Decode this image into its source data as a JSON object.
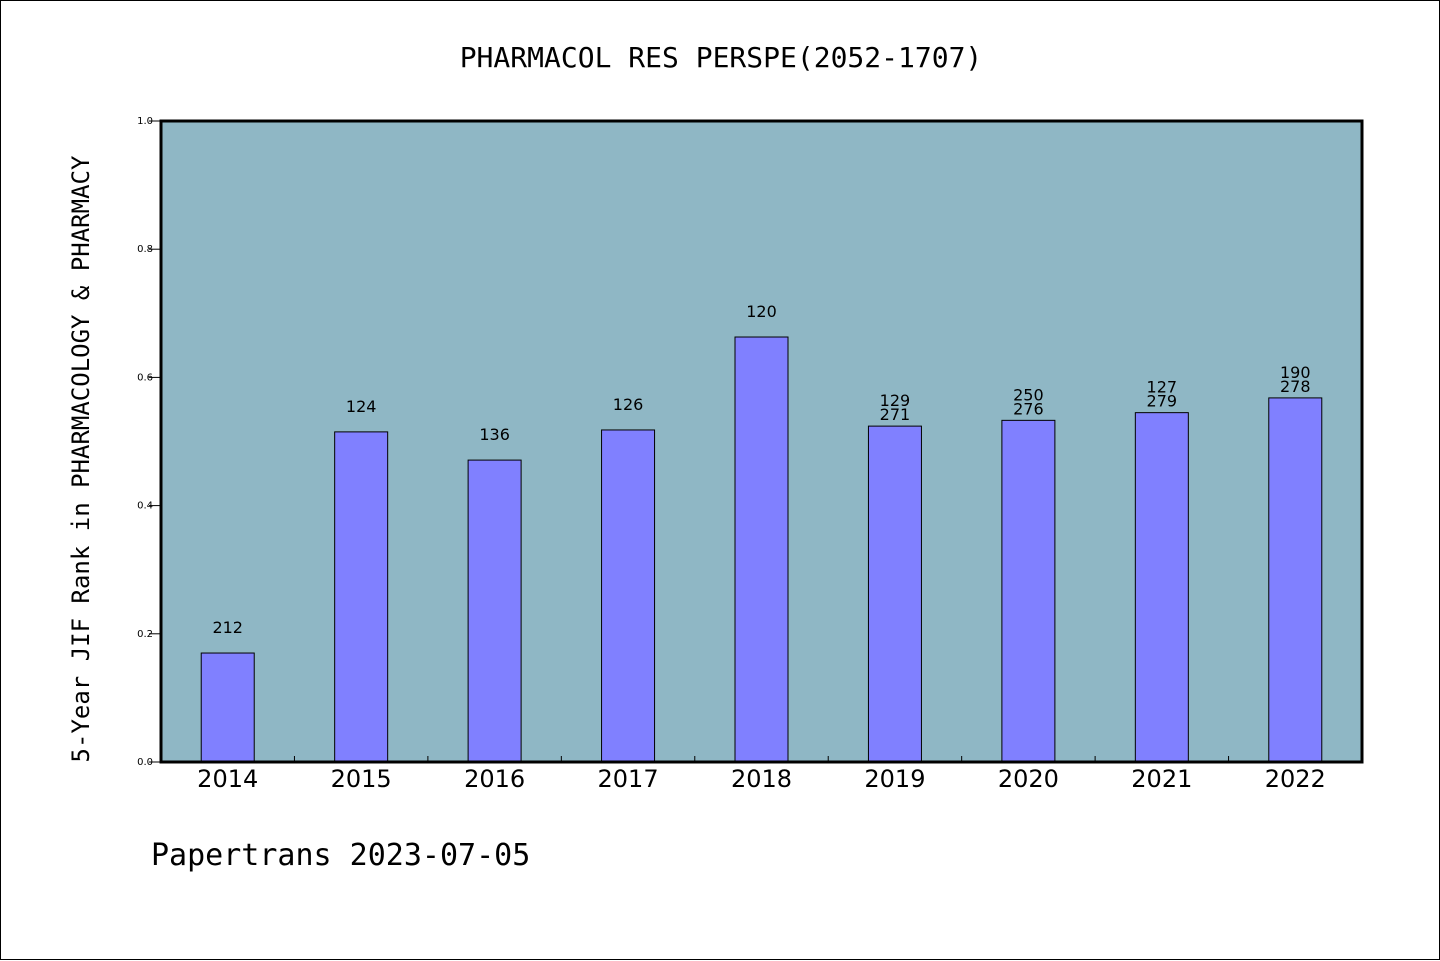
{
  "chart_data": {
    "type": "bar",
    "title": "PHARMACOL RES PERSPE(2052-1707)",
    "ylabel": "5-Year JIF Rank in PHARMACOLOGY & PHARMACY",
    "xlabel": "",
    "ylim": [
      0,
      1.0
    ],
    "yticks": [
      "0.0",
      "0.2",
      "0.4",
      "0.6",
      "0.8",
      "1.0"
    ],
    "categories": [
      "2014",
      "2015",
      "2016",
      "2017",
      "2018",
      "2019",
      "2020",
      "2021",
      "2022"
    ],
    "values": [
      0.17,
      0.515,
      0.471,
      0.518,
      0.663,
      0.524,
      0.533,
      0.545,
      0.568
    ],
    "labels": [
      [
        "212"
      ],
      [
        "124"
      ],
      [
        "136"
      ],
      [
        "126"
      ],
      [
        "120"
      ],
      [
        "129",
        "271"
      ],
      [
        "250",
        "276"
      ],
      [
        "127",
        "279"
      ],
      [
        "190",
        "278"
      ]
    ],
    "grid": false,
    "colors": {
      "plot_background": "#8fb7c5",
      "bar_fill": "#8080ff",
      "bar_stroke": "#000000"
    }
  },
  "footer": {
    "text": "Papertrans 2023-07-05"
  }
}
